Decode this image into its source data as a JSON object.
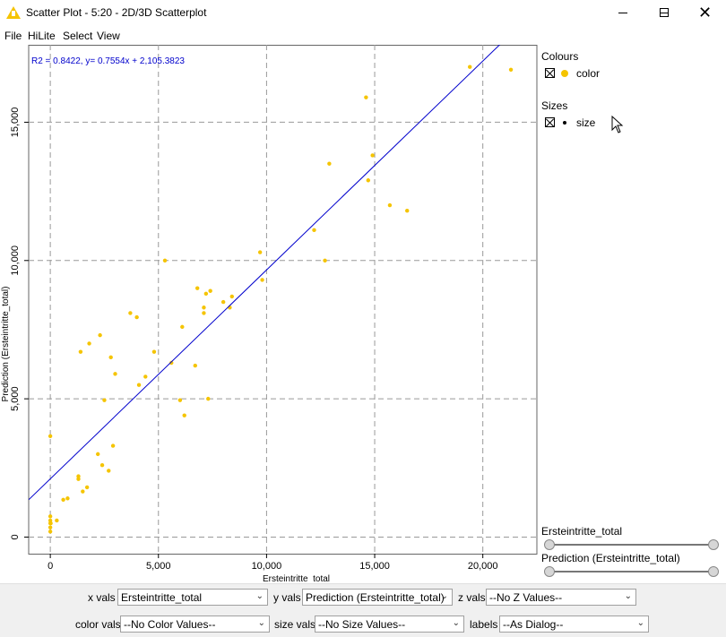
{
  "window": {
    "title": "Scatter Plot - 5:20 - 2D/3D Scatterplot"
  },
  "menu": [
    "File",
    "HiLite",
    "Select",
    "View"
  ],
  "chart_data": {
    "type": "scatter",
    "annotation": "R2 = 0.8422, y= 0.7554x + 2,105.3823",
    "xlabel": "Ersteintritte_total",
    "ylabel": "Prediction (Ersteintritte_total)",
    "xlim": [
      -1000,
      22500
    ],
    "ylim": [
      -600,
      17800
    ],
    "xticks": [
      0,
      5000,
      10000,
      15000,
      20000
    ],
    "xtick_labels": [
      "0",
      "5,000",
      "10,000",
      "15,000",
      "20,000"
    ],
    "yticks": [
      0,
      5000,
      10000,
      15000
    ],
    "ytick_labels": [
      "0",
      "5,000",
      "10,000",
      "15,000"
    ],
    "grid": true,
    "point_color": "#f5c400",
    "line_color": "#0000cc",
    "regression": {
      "slope": 0.7554,
      "intercept": 2105.3823
    },
    "x": [
      0,
      0,
      0,
      0,
      0,
      0,
      20,
      300,
      600,
      800,
      1300,
      1300,
      1400,
      1500,
      1700,
      1800,
      2200,
      2300,
      2400,
      2500,
      2700,
      2800,
      2900,
      3000,
      3700,
      4000,
      4100,
      4400,
      4800,
      5300,
      5600,
      6000,
      6100,
      6200,
      6700,
      6800,
      7100,
      7100,
      7200,
      7300,
      7400,
      8000,
      8300,
      8400,
      9700,
      9800,
      12200,
      12700,
      12900,
      14600,
      14700,
      14900,
      15700,
      16500,
      19400,
      21300
    ],
    "y": [
      200,
      350,
      500,
      600,
      750,
      3650,
      500,
      600,
      1350,
      1400,
      2100,
      2200,
      6700,
      1650,
      1800,
      7000,
      3000,
      7300,
      2600,
      4950,
      2400,
      6500,
      3300,
      5900,
      8100,
      7950,
      5500,
      5800,
      6700,
      10000,
      6300,
      4950,
      7600,
      4400,
      6200,
      9000,
      8100,
      8300,
      8800,
      5000,
      8900,
      8500,
      8300,
      8700,
      10300,
      9300,
      11100,
      10000,
      13500,
      15900,
      12900,
      13800,
      12000,
      11800,
      17000,
      16900
    ]
  },
  "legend": {
    "colours_title": "Colours",
    "colours_item": "color",
    "sizes_title": "Sizes",
    "sizes_item": "size"
  },
  "range_sliders": {
    "x_label": "Ersteintritte_total",
    "y_label": "Prediction (Ersteintritte_total)"
  },
  "controls": {
    "x_vals_label": "x vals",
    "x_vals_value": "Ersteintritte_total",
    "y_vals_label": "y vals",
    "y_vals_value": "Prediction (Ersteintritte_total)",
    "z_vals_label": "z vals",
    "z_vals_value": "--No Z Values--",
    "color_vals_label": "color vals",
    "color_vals_value": "--No Color Values--",
    "size_vals_label": "size vals",
    "size_vals_value": "--No Size Values--",
    "labels_label": "labels",
    "labels_value": "--As Dialog--"
  }
}
